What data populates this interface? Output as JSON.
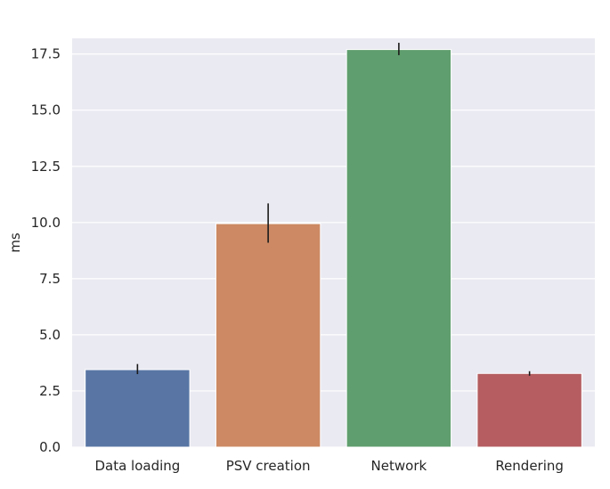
{
  "chart_data": {
    "type": "bar",
    "title": "",
    "xlabel": "",
    "ylabel": "ms",
    "categories": [
      "Data loading",
      "PSV creation",
      "Network",
      "Rendering"
    ],
    "values": [
      3.45,
      9.95,
      17.7,
      3.28
    ],
    "error_low": [
      3.25,
      9.1,
      17.45,
      3.18
    ],
    "error_high": [
      3.7,
      10.85,
      18.0,
      3.38
    ],
    "colors": [
      "#5875a4",
      "#cc8963",
      "#5f9e6e",
      "#b55d60"
    ],
    "ylim": [
      0,
      18.2
    ],
    "yticks": [
      0.0,
      2.5,
      5.0,
      7.5,
      10.0,
      12.5,
      15.0,
      17.5
    ],
    "ytick_labels": [
      "0.0",
      "2.5",
      "5.0",
      "7.5",
      "10.0",
      "12.5",
      "15.0",
      "17.5"
    ],
    "grid": true,
    "background": "#eaeaf2"
  }
}
